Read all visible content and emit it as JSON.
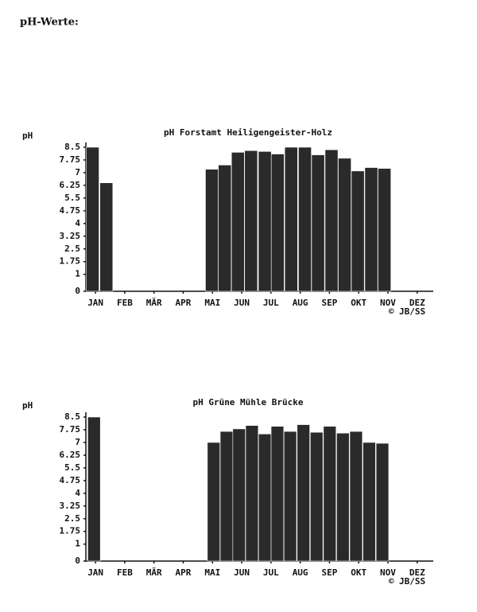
{
  "title": "pH-Werte:",
  "chart_data": [
    {
      "type": "bar",
      "title": "pH Forstamt Heiligengeister-Holz",
      "y_label": "pH",
      "annotation": "© JB/SS",
      "color": "#2a2a2a",
      "x": [
        0.9,
        1.37,
        4.98,
        5.42,
        5.87,
        6.32,
        6.79,
        7.23,
        7.69,
        8.16,
        8.61,
        9.07,
        9.52,
        9.97,
        10.43,
        10.88
      ],
      "values": [
        8.5,
        6.4,
        7.2,
        7.45,
        8.2,
        8.3,
        8.25,
        8.1,
        8.5,
        8.5,
        8.05,
        8.35,
        7.85,
        7.1,
        7.3,
        7.25
      ],
      "xlim": [
        0.67,
        12.55
      ],
      "xticks": [
        {
          "value": 1,
          "label": "JAN"
        },
        {
          "value": 2,
          "label": "FEB"
        },
        {
          "value": 3,
          "label": "MÄR"
        },
        {
          "value": 4,
          "label": "APR"
        },
        {
          "value": 5,
          "label": "MAI"
        },
        {
          "value": 6,
          "label": "JUN"
        },
        {
          "value": 7,
          "label": "JUL"
        },
        {
          "value": 8,
          "label": "AUG"
        },
        {
          "value": 9,
          "label": "SEP"
        },
        {
          "value": 10,
          "label": "OKT"
        },
        {
          "value": 11,
          "label": "NOV"
        },
        {
          "value": 12,
          "label": "DEZ"
        }
      ],
      "ylim": [
        0,
        8.5
      ],
      "yticks": [
        0,
        1,
        1.75,
        2.5,
        3.25,
        4,
        4.75,
        5.5,
        6.25,
        7,
        7.75,
        8.5
      ]
    },
    {
      "type": "bar",
      "title": "pH Grüne Mühle Brücke",
      "y_label": "pH",
      "annotation": "© JB/SS",
      "color": "#2a2a2a",
      "x": [
        0.95,
        5.04,
        5.48,
        5.91,
        6.35,
        6.79,
        7.22,
        7.66,
        8.11,
        8.56,
        9.01,
        9.46,
        9.91,
        10.36,
        10.81
      ],
      "values": [
        8.5,
        7.0,
        7.65,
        7.8,
        8.0,
        7.5,
        7.95,
        7.65,
        8.05,
        7.6,
        7.95,
        7.55,
        7.65,
        7.0,
        6.95
      ],
      "xlim": [
        0.67,
        12.55
      ],
      "xticks": [
        {
          "value": 1,
          "label": "JAN"
        },
        {
          "value": 2,
          "label": "FEB"
        },
        {
          "value": 3,
          "label": "MÄR"
        },
        {
          "value": 4,
          "label": "APR"
        },
        {
          "value": 5,
          "label": "MAI"
        },
        {
          "value": 6,
          "label": "JUN"
        },
        {
          "value": 7,
          "label": "JUL"
        },
        {
          "value": 8,
          "label": "AUG"
        },
        {
          "value": 9,
          "label": "SEP"
        },
        {
          "value": 10,
          "label": "OKT"
        },
        {
          "value": 11,
          "label": "NOV"
        },
        {
          "value": 12,
          "label": "DEZ"
        }
      ],
      "ylim": [
        0,
        8.5
      ],
      "yticks": [
        0,
        1,
        1.75,
        2.5,
        3.25,
        4,
        4.75,
        5.5,
        6.25,
        7,
        7.75,
        8.5
      ]
    }
  ]
}
